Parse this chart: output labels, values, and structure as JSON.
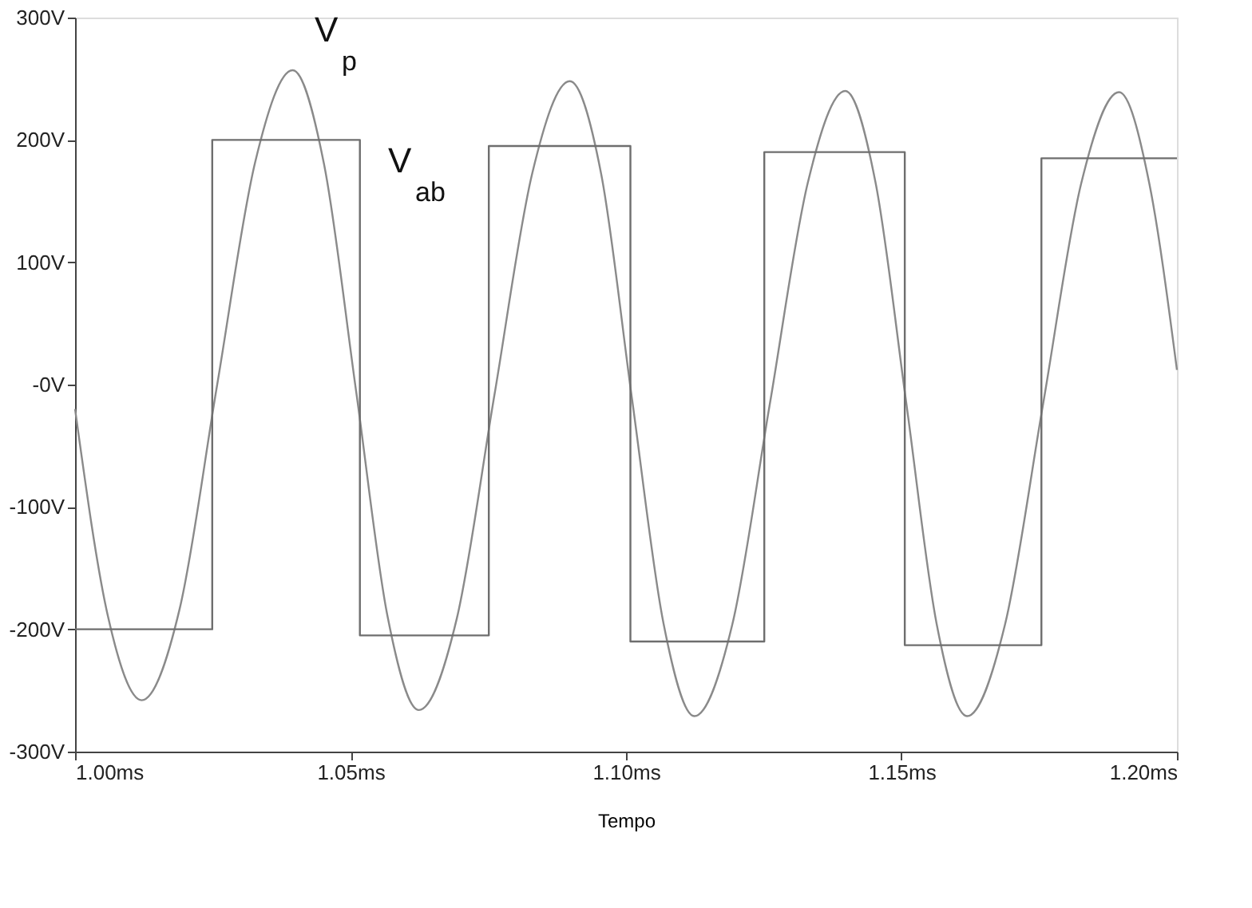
{
  "chart_data": {
    "type": "line",
    "xlabel": "Tempo",
    "xlim": [
      1.0,
      1.2
    ],
    "xticks": [
      {
        "value": 1.0,
        "label": "1.00ms"
      },
      {
        "value": 1.05,
        "label": "1.05ms"
      },
      {
        "value": 1.1,
        "label": "1.10ms"
      },
      {
        "value": 1.15,
        "label": "1.15ms"
      },
      {
        "value": 1.2,
        "label": "1.20ms"
      }
    ],
    "ylim": [
      -300,
      300
    ],
    "yticks": [
      {
        "value": -300,
        "label": "-300V"
      },
      {
        "value": -200,
        "label": "-200V"
      },
      {
        "value": -100,
        "label": "-100V"
      },
      {
        "value": 0,
        "label": "-0V"
      },
      {
        "value": 100,
        "label": "100V"
      },
      {
        "value": 200,
        "label": "200V"
      },
      {
        "value": 300,
        "label": "300V"
      }
    ],
    "grid": false,
    "marker": "none",
    "line_style": "solid",
    "series": [
      {
        "type": "line",
        "color": "#8a8a8a",
        "x": [
          1.0,
          1.006,
          1.0121,
          1.019,
          1.0258,
          1.0327,
          1.0395,
          1.0452,
          1.051,
          1.0567,
          1.0624,
          1.0693,
          1.0761,
          1.083,
          1.0898,
          1.0955,
          1.1011,
          1.1068,
          1.1124,
          1.1193,
          1.1261,
          1.133,
          1.1398,
          1.1453,
          1.1509,
          1.1564,
          1.1619,
          1.1688,
          1.1757,
          1.1826,
          1.1895,
          1.195,
          1.2
        ],
        "values": [
          -20,
          -190,
          -258,
          -183,
          0,
          182,
          257,
          180,
          -5,
          -189,
          -266,
          -191,
          -9,
          173,
          248,
          172,
          -12,
          -195,
          -271,
          -196,
          -16,
          165,
          240,
          165,
          -16,
          -196,
          -271,
          -196,
          -16,
          164,
          239,
          164,
          12
        ]
      },
      {
        "type": "step",
        "color": "#6e6e6e",
        "x": [
          1.0,
          1.0249,
          1.0517,
          1.0751,
          1.1008,
          1.1251,
          1.1506,
          1.1754,
          1.2
        ],
        "values": [
          -200,
          200,
          -205,
          195,
          -210,
          190,
          -213,
          185,
          185
        ]
      }
    ],
    "annotations": [
      "V$_{p}$",
      "V$_{ab}$"
    ]
  }
}
